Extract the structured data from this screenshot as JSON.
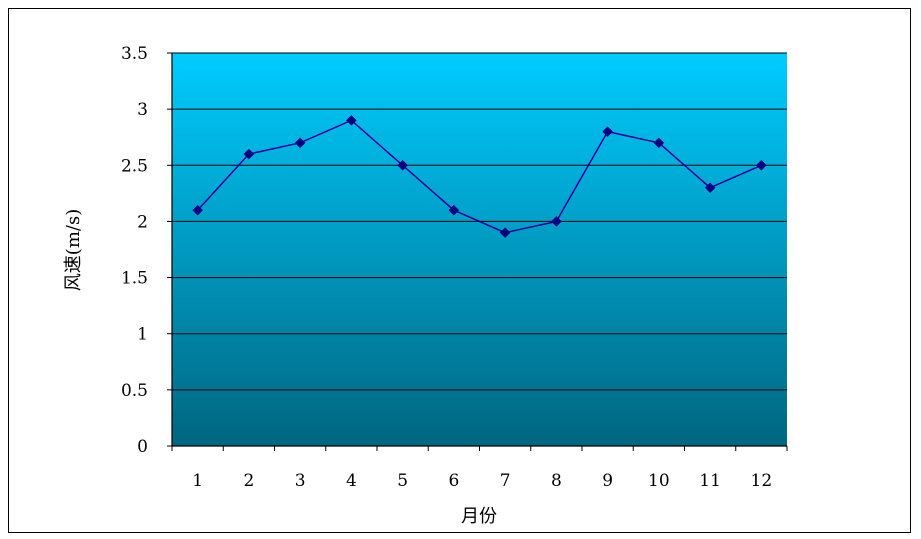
{
  "chart_data": {
    "type": "line",
    "title": "",
    "xlabel": "月份",
    "ylabel": "风速(m/s)",
    "categories": [
      "1",
      "2",
      "3",
      "4",
      "5",
      "6",
      "7",
      "8",
      "9",
      "10",
      "11",
      "12"
    ],
    "series": [
      {
        "values": [
          2.1,
          2.6,
          2.7,
          2.9,
          2.5,
          2.1,
          1.9,
          2.0,
          2.8,
          2.7,
          2.3,
          2.5
        ]
      }
    ],
    "ylim": [
      0,
      3.5
    ],
    "y_ticks": [
      "0",
      "0.5",
      "1",
      "1.5",
      "2",
      "2.5",
      "3",
      "3.5"
    ],
    "grid": "horizontal",
    "legend": "none",
    "colors": {
      "line": "#000099",
      "marker": "#000080",
      "plot_bg_top": "#00CCFF",
      "plot_bg_bottom": "#006680",
      "gridline": "#000000"
    }
  }
}
